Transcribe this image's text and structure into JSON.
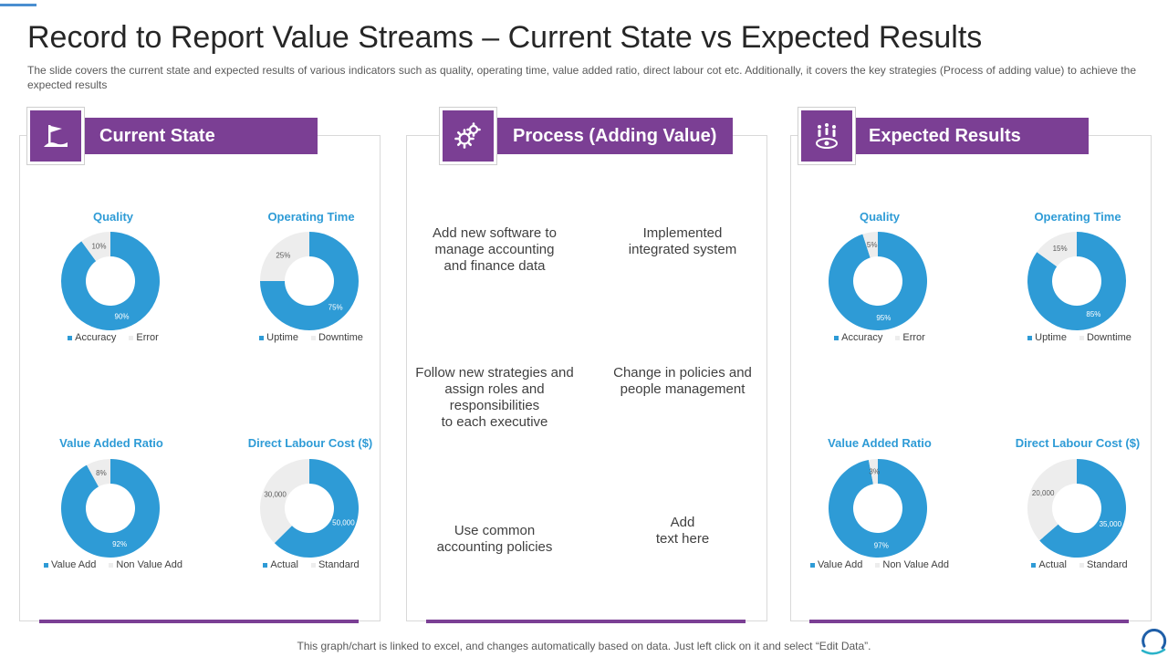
{
  "title": "Record to Report Value Streams – Current State vs Expected Results",
  "subtitle": "The slide covers the current state and expected results of various  indicators such as quality, operating time, value  added ratio, direct labour cot etc. Additionally, it covers  the key strategies (Process of adding value)  to achieve  the expected results",
  "colors": {
    "purple": "#7b3f94",
    "blue": "#2e9bd6",
    "gray": "#ededed"
  },
  "sections": {
    "current": {
      "heading": "Current State",
      "icon": "flag-icon"
    },
    "process": {
      "heading": "Process (Adding Value)",
      "icon": "gears-icon"
    },
    "expected": {
      "heading": "Expected Results",
      "icon": "target-group-icon"
    }
  },
  "process_items": [
    "Add new software to\nmanage accounting\nand finance data",
    "Implemented\nintegrated system",
    "Follow new strategies and\nassign roles and\nresponsibilities\nto each executive",
    "Change in policies and\npeople management",
    "Use common\naccounting policies",
    "Add\ntext here"
  ],
  "chart_data": [
    {
      "type": "pie",
      "panel": "Current State",
      "title": "Quality",
      "labels": [
        "Accuracy",
        "Error"
      ],
      "values": [
        90,
        10
      ],
      "value_labels": [
        "90%",
        "10%"
      ]
    },
    {
      "type": "pie",
      "panel": "Current State",
      "title": "Operating Time",
      "labels": [
        "Uptime",
        "Downtime"
      ],
      "values": [
        75,
        25
      ],
      "value_labels": [
        "75%",
        "25%"
      ]
    },
    {
      "type": "pie",
      "panel": "Current State",
      "title": "Value Added Ratio",
      "labels": [
        "Value Add",
        "Non Value Add"
      ],
      "values": [
        92,
        8
      ],
      "value_labels": [
        "92%",
        "8%"
      ]
    },
    {
      "type": "pie",
      "panel": "Current State",
      "title": "Direct Labour Cost ($)",
      "labels": [
        "Actual",
        "Standard"
      ],
      "values": [
        50000,
        30000
      ],
      "value_labels": [
        "50,000",
        "30,000"
      ]
    },
    {
      "type": "pie",
      "panel": "Expected Results",
      "title": "Quality",
      "labels": [
        "Accuracy",
        "Error"
      ],
      "values": [
        95,
        5
      ],
      "value_labels": [
        "95%",
        "5%"
      ]
    },
    {
      "type": "pie",
      "panel": "Expected Results",
      "title": "Operating Time",
      "labels": [
        "Uptime",
        "Downtime"
      ],
      "values": [
        85,
        15
      ],
      "value_labels": [
        "85%",
        "15%"
      ]
    },
    {
      "type": "pie",
      "panel": "Expected Results",
      "title": "Value Added Ratio",
      "labels": [
        "Value Add",
        "Non Value Add"
      ],
      "values": [
        97,
        3
      ],
      "value_labels": [
        "97%",
        "3%"
      ]
    },
    {
      "type": "pie",
      "panel": "Expected Results",
      "title": "Direct Labour Cost ($)",
      "labels": [
        "Actual",
        "Standard"
      ],
      "values": [
        35000,
        20000
      ],
      "value_labels": [
        "35,000",
        "20,000"
      ]
    }
  ],
  "footer": "This graph/chart is linked to excel,  and changes automatically based on data. Just left click on it and select “Edit Data”."
}
